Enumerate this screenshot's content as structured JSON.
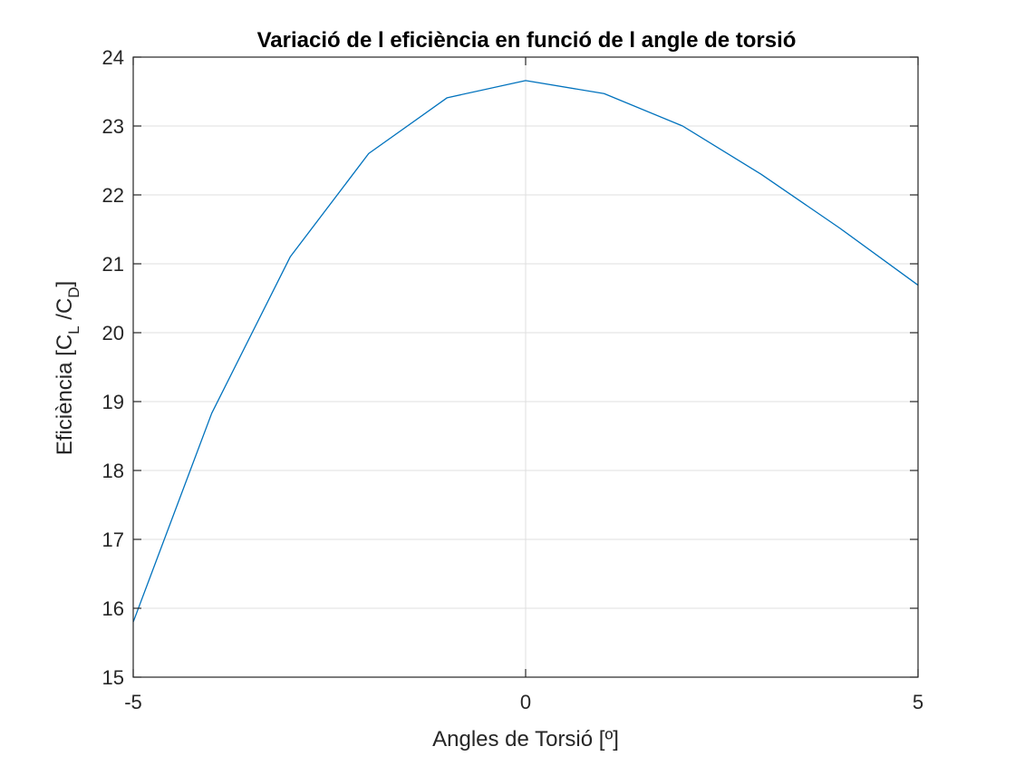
{
  "chart_data": {
    "type": "line",
    "title": "Variació de l eficiència en funció de l angle de torsió",
    "xlabel": "Angles de Torsió [º]",
    "ylabel": {
      "prefix": "Eficiència [C",
      "sub1": "L",
      "mid": " /C",
      "sub2": "D",
      "suffix": "]"
    },
    "xlim": [
      -5,
      5
    ],
    "ylim": [
      15,
      24
    ],
    "xticks": [
      -5,
      0,
      5
    ],
    "yticks": [
      15,
      16,
      17,
      18,
      19,
      20,
      21,
      22,
      23,
      24
    ],
    "grid": true,
    "box": true,
    "series": [
      {
        "color": "#0072BD",
        "x": [
          -5,
          -4,
          -3,
          -2,
          -1,
          0,
          1,
          2,
          3,
          4,
          5
        ],
        "y": [
          15.8,
          18.83,
          21.1,
          22.6,
          23.41,
          23.66,
          23.47,
          23.0,
          22.3,
          21.52,
          20.69
        ]
      }
    ]
  }
}
